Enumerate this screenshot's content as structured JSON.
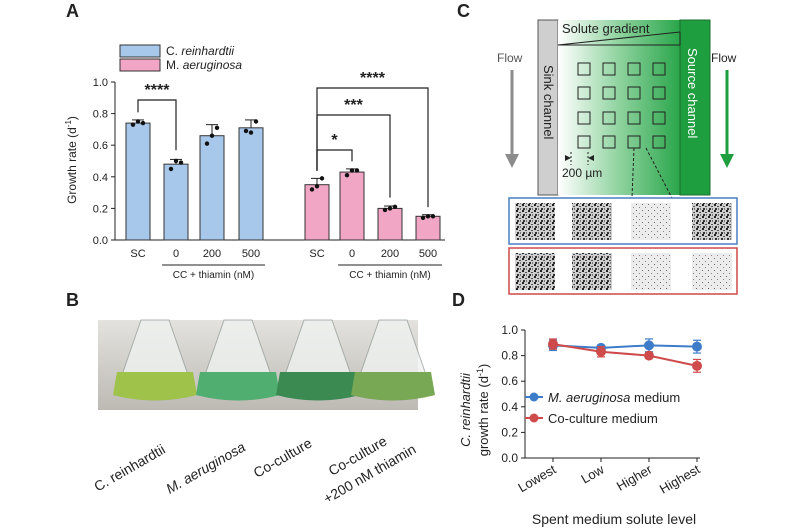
{
  "panels": {
    "A": {
      "letter": "A"
    },
    "B": {
      "letter": "B",
      "flask_labels": [
        "C. reinhardtii",
        "M. aeruginosa",
        "Co-culture",
        "Co-culture",
        "+200 nM thiamin"
      ]
    },
    "C": {
      "letter": "C",
      "solute_gradient": "Solute gradient",
      "flow_left": "Flow",
      "flow_right": "Flow",
      "sink_channel": "Sink channel",
      "source_channel": "Source channel",
      "scale_label": "200 µm"
    },
    "D": {
      "letter": "D"
    }
  },
  "colors": {
    "c_reinhardtii_bar": "#a7c8ea",
    "m_aeruginosa_bar": "#f2a6c6",
    "m_medium_line": "#3d7cc9",
    "co_medium_line": "#cf4b4b",
    "source_green": "#1f9e3f",
    "blue_frame": "#4a7fc1",
    "red_frame": "#d04848"
  },
  "chart_data": [
    {
      "type": "bar",
      "legend": [
        "C. reinhardtii",
        "M. aeruginosa"
      ],
      "legend_prefix": [
        "C.",
        "M."
      ],
      "legend_species": [
        "reinhardtii",
        "aeruginosa"
      ],
      "ylabel_main": "Growth rate (d",
      "ylabel_sup": "-1",
      "ylabel_end": ")",
      "ylim": [
        0,
        1.0
      ],
      "yticks": [
        "0.0",
        "0.2",
        "0.4",
        "0.6",
        "0.8",
        "1.0"
      ],
      "ytick_values": [
        0,
        0.2,
        0.4,
        0.6,
        0.8,
        1.0
      ],
      "group_label": "CC + thiamin (nM)",
      "series": [
        {
          "name": "C. reinhardtii",
          "categories": [
            "SC",
            "0",
            "200",
            "500"
          ],
          "values": [
            0.74,
            0.48,
            0.66,
            0.71
          ],
          "errors": [
            0.02,
            0.03,
            0.07,
            0.05
          ],
          "points": [
            [
              0.73,
              0.75,
              0.74
            ],
            [
              0.45,
              0.5,
              0.49
            ],
            [
              0.61,
              0.66,
              0.71
            ],
            [
              0.69,
              0.68,
              0.75
            ]
          ]
        },
        {
          "name": "M. aeruginosa",
          "categories": [
            "SC",
            "0",
            "200",
            "500"
          ],
          "values": [
            0.35,
            0.43,
            0.2,
            0.15
          ],
          "errors": [
            0.04,
            0.02,
            0.015,
            0.01
          ],
          "points": [
            [
              0.32,
              0.34,
              0.39
            ],
            [
              0.41,
              0.44,
              0.44
            ],
            [
              0.19,
              0.2,
              0.21
            ],
            [
              0.14,
              0.15,
              0.15
            ]
          ]
        }
      ],
      "significance": [
        "****",
        "*",
        "***",
        "****"
      ]
    },
    {
      "type": "line",
      "ylabel_line1_italic": "C. reinhardtii",
      "ylabel_line2": "growth rate (d",
      "ylabel_sup": "-1",
      "ylabel_end": ")",
      "xlabel": "Spent medium solute level",
      "categories": [
        "Lowest",
        "Low",
        "Higher",
        "Highest"
      ],
      "ylim": [
        0,
        1.0
      ],
      "yticks": [
        "0.0",
        "0.2",
        "0.4",
        "0.6",
        "0.8",
        "1.0"
      ],
      "ytick_values": [
        0,
        0.2,
        0.4,
        0.6,
        0.8,
        1.0
      ],
      "series": [
        {
          "name": "M. aeruginosa medium",
          "name_italic": "M. aeruginosa",
          "name_rest": " medium",
          "values": [
            0.88,
            0.86,
            0.88,
            0.87
          ],
          "errors": [
            0.04,
            0.02,
            0.05,
            0.05
          ]
        },
        {
          "name": "Co-culture medium",
          "name_italic": "",
          "name_rest": "Co-culture medium",
          "values": [
            0.89,
            0.83,
            0.8,
            0.72
          ],
          "errors": [
            0.04,
            0.04,
            0.02,
            0.05
          ]
        }
      ]
    }
  ]
}
